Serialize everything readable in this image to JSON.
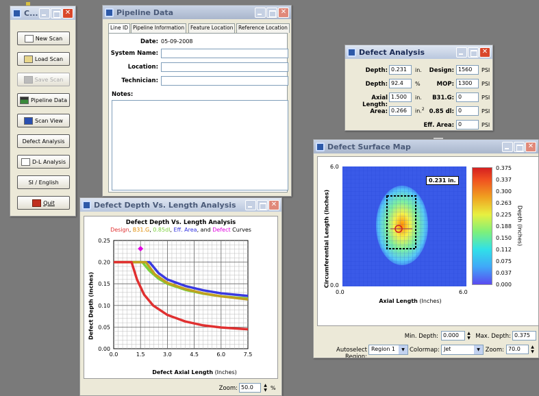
{
  "toolbox": {
    "title": "C...",
    "buttons": [
      "New Scan",
      "Load Scan",
      "Save Scan",
      "Pipeline Data",
      "Scan View",
      "Defect Analysis",
      "D-L Analysis",
      "SI / English",
      "Quit"
    ]
  },
  "pipeline": {
    "title": "Pipeline Data",
    "tabs": [
      "Line ID",
      "Pipeline Information",
      "Feature Location",
      "Reference Location"
    ],
    "date_label": "Date:",
    "date_value": "05-09-2008",
    "system_label": "System Name:",
    "location_label": "Location:",
    "technician_label": "Technician:",
    "notes_label": "Notes:"
  },
  "defect": {
    "title": "Defect Analysis",
    "depth_label": "Depth:",
    "depth_value": "0.231",
    "depth_unit": "in.",
    "depth_pct_label": "Depth:",
    "depth_pct_value": "92.4",
    "depth_pct_unit": "%",
    "axial_label": "Axial Length:",
    "axial_value": "1.500",
    "axial_unit": "in.",
    "area_label": "Area:",
    "area_value": "0.266",
    "area_unit": "in.2",
    "design_label": "Design:",
    "design_value": "1560",
    "design_unit": "PSI",
    "mop_label": "MOP:",
    "mop_value": "1300",
    "mop_unit": "PSI",
    "b31g_label": "B31.G:",
    "b31g_value": "0",
    "b31g_unit": "PSI",
    "dl085_label": "0.85 dl:",
    "dl085_value": "0",
    "dl085_unit": "PSI",
    "eff_label": "Eff. Area:",
    "eff_value": "0",
    "eff_unit": "PSI"
  },
  "surface": {
    "title": "Defect Surface Map",
    "x_axis_label": "Axial Length",
    "x_axis_unit": "(Inches)",
    "y_axis_label": "Circumferential Length (Inches)",
    "x_ticks": [
      "0.0",
      "6.0"
    ],
    "y_ticks": [
      "6.0",
      "0.0"
    ],
    "callout": "0.231 in.",
    "colorbar_ticks": [
      "0.375",
      "0.337",
      "0.300",
      "0.263",
      "0.225",
      "0.188",
      "0.150",
      "0.112",
      "0.075",
      "0.037",
      "0.000"
    ],
    "colorbar_label": "Depth (Inches)",
    "min_depth_label": "Min. Depth:",
    "min_depth_value": "0.000",
    "max_depth_label": "Max. Depth:",
    "max_depth_value": "0.375",
    "autoselect_label": "Autoselect Region:",
    "autoselect_value": "Region 1",
    "colormap_label": "Colormap:",
    "colormap_value": "Jet",
    "zoom_label": "Zoom:",
    "zoom_value": "70.0"
  },
  "dl": {
    "title": "Defect Depth Vs. Length Analysis",
    "zoom_label": "Zoom:",
    "zoom_value": "50.0",
    "zoom_unit": "%"
  },
  "chart_data": {
    "type": "line",
    "title": "Defect Depth Vs. Length Analysis",
    "subtitle_parts": [
      {
        "text": "Design",
        "color": "#e03030"
      },
      {
        "text": ", ",
        "color": "#000000"
      },
      {
        "text": "B31.G",
        "color": "#e08a00"
      },
      {
        "text": ", ",
        "color": "#000000"
      },
      {
        "text": "0.85dl",
        "color": "#7ad03a"
      },
      {
        "text": ", ",
        "color": "#000000"
      },
      {
        "text": "Eff. Area",
        "color": "#3030e0"
      },
      {
        "text": ", and ",
        "color": "#000000"
      },
      {
        "text": "Defect",
        "color": "#e000e0"
      },
      {
        "text": " Curves",
        "color": "#000000"
      }
    ],
    "xlabel": "Defect Axial Length",
    "xunit": "(Inches)",
    "ylabel": "Defect Depth (Inches)",
    "xlim": [
      0,
      7.5
    ],
    "ylim": [
      0,
      0.25
    ],
    "xticks": [
      "0.0",
      "1.5",
      "3.0",
      "4.5",
      "6.0",
      "7.5"
    ],
    "yticks": [
      "0.25",
      "0.20",
      "0.15",
      "0.10",
      "0.05",
      "0.00"
    ],
    "series": [
      {
        "color": "#3a3ae0",
        "points": [
          [
            0,
            0.2
          ],
          [
            2.0,
            0.2
          ],
          [
            2.5,
            0.175
          ],
          [
            3.0,
            0.16
          ],
          [
            4.0,
            0.145
          ],
          [
            5.0,
            0.135
          ],
          [
            6.0,
            0.128
          ],
          [
            7.5,
            0.122
          ]
        ]
      },
      {
        "color": "#7ad03a",
        "points": [
          [
            0,
            0.2
          ],
          [
            1.6,
            0.2
          ],
          [
            2.0,
            0.18
          ],
          [
            2.5,
            0.162
          ],
          [
            3.0,
            0.15
          ],
          [
            4.0,
            0.136
          ],
          [
            5.0,
            0.127
          ],
          [
            6.0,
            0.121
          ],
          [
            7.5,
            0.116
          ]
        ]
      },
      {
        "color": "#c0a020",
        "points": [
          [
            0,
            0.2
          ],
          [
            1.8,
            0.2
          ],
          [
            2.3,
            0.172
          ],
          [
            3.0,
            0.152
          ],
          [
            4.0,
            0.138
          ],
          [
            5.0,
            0.128
          ],
          [
            6.0,
            0.121
          ],
          [
            7.5,
            0.114
          ]
        ]
      },
      {
        "color": "#e03030",
        "points": [
          [
            0,
            0.2
          ],
          [
            1.0,
            0.2
          ],
          [
            1.3,
            0.16
          ],
          [
            1.7,
            0.125
          ],
          [
            2.2,
            0.1
          ],
          [
            3.0,
            0.078
          ],
          [
            4.0,
            0.063
          ],
          [
            5.0,
            0.054
          ],
          [
            6.0,
            0.049
          ],
          [
            7.5,
            0.045
          ]
        ]
      }
    ],
    "defect_point": {
      "x": 1.5,
      "y": 0.231,
      "color": "#e000e0"
    }
  }
}
